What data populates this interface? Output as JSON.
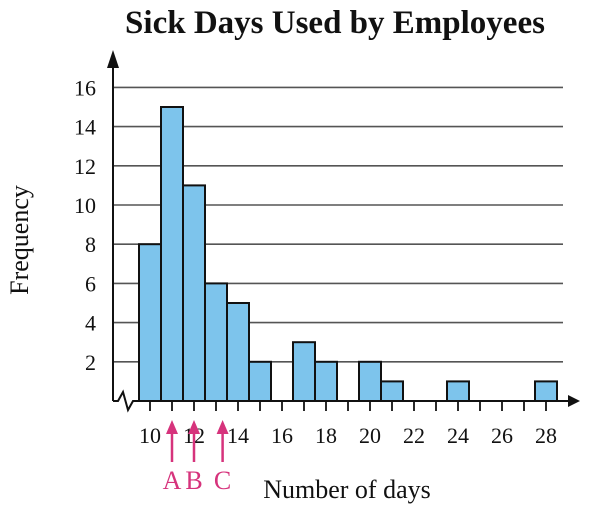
{
  "chart_data": {
    "type": "bar",
    "title": "Sick Days Used by Employees",
    "xlabel": "Number of days",
    "ylabel": "Frequency",
    "x": [
      10,
      11,
      12,
      13,
      14,
      15,
      16,
      17,
      18,
      19,
      20,
      21,
      22,
      23,
      24,
      25,
      26,
      27,
      28
    ],
    "values": [
      8,
      15,
      11,
      6,
      5,
      2,
      0,
      3,
      2,
      0,
      2,
      1,
      0,
      0,
      1,
      0,
      0,
      0,
      1
    ],
    "xlim": [
      10,
      28
    ],
    "ylim": [
      0,
      16
    ],
    "x_ticks": [
      "10",
      "12",
      "14",
      "16",
      "18",
      "20",
      "22",
      "24",
      "26",
      "28"
    ],
    "y_ticks": [
      "2",
      "4",
      "6",
      "8",
      "10",
      "12",
      "14",
      "16"
    ],
    "grid": true,
    "axis_break": "x",
    "markers": [
      {
        "label": "A",
        "x": 11
      },
      {
        "label": "B",
        "x": 12
      },
      {
        "label": "C",
        "x": 13.3
      }
    ],
    "colors": {
      "bar_fill": "#7dc4ec",
      "bar_stroke": "#111111",
      "grid": "#555555",
      "axis": "#111111",
      "marker": "#d6337c"
    }
  }
}
